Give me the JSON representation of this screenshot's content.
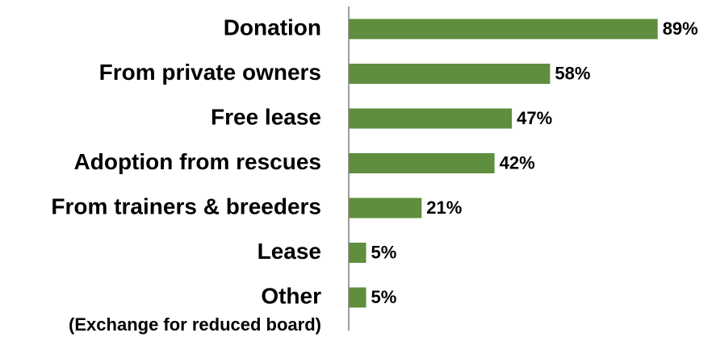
{
  "chart_data": {
    "type": "bar",
    "orientation": "horizontal",
    "categories": [
      "Donation",
      "From private owners",
      "Free lease",
      "Adoption from rescues",
      "From trainers & breeders",
      "Lease",
      "Other"
    ],
    "values": [
      89,
      58,
      47,
      42,
      21,
      5,
      5
    ],
    "value_labels": [
      "89%",
      "58%",
      "47%",
      "42%",
      "21%",
      "5%",
      "5%"
    ],
    "color": "#5e8e3e",
    "xlim": [
      0,
      100
    ],
    "annotations": [
      {
        "text": "(Exchange for reduced board)"
      }
    ]
  }
}
